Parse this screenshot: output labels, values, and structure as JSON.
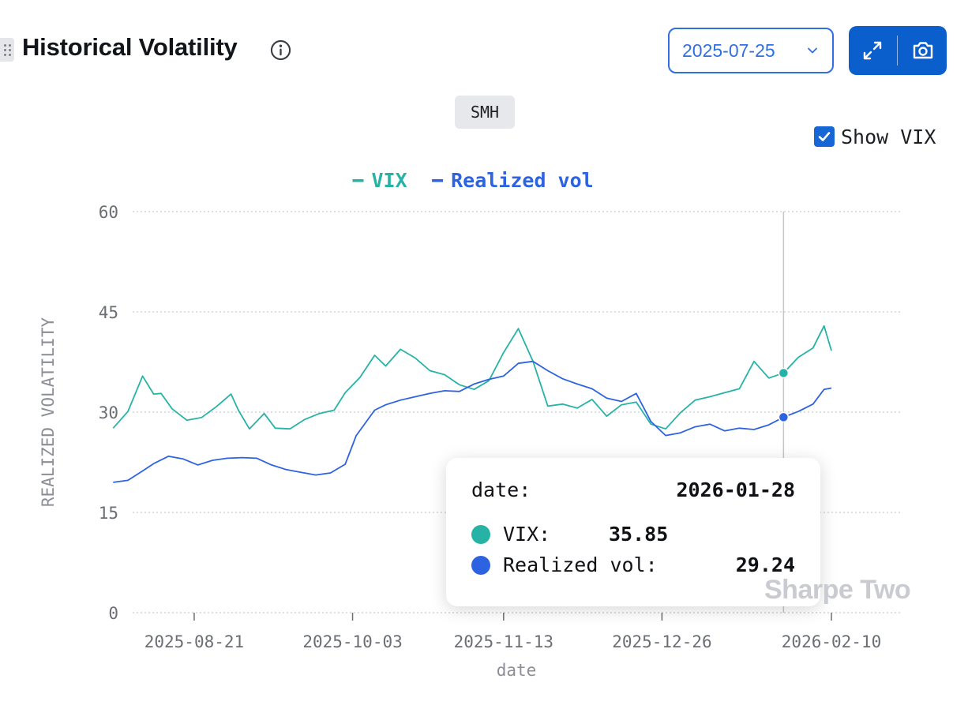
{
  "header": {
    "title": "Historical Volatility",
    "date_select_value": "2025-07-25",
    "expand_icon": "expand-icon",
    "camera_icon": "camera-icon",
    "info_icon": "info-icon"
  },
  "ticker": "SMH",
  "show_vix": {
    "label": "Show VIX",
    "checked": true
  },
  "tooltip": {
    "date_label": "date:",
    "date_value": "2026-01-28",
    "vix_label": "VIX:",
    "vix_value": "35.85",
    "rv_label": "Realized vol:",
    "rv_value": "29.24"
  },
  "watermark": "Sharpe Two",
  "colors": {
    "vix": "#26b3a6",
    "realized": "#2d63e0",
    "accent": "#0b5fcc"
  },
  "chart_data": {
    "type": "line",
    "xlabel": "date",
    "ylabel": "REALIZED VOLATILITY",
    "ylim": [
      0,
      60
    ],
    "yticks": [
      0,
      15,
      30,
      45,
      60
    ],
    "xlim": [
      "2025-07-25",
      "2026-02-14"
    ],
    "xticks": [
      "2025-08-21",
      "2025-10-03",
      "2025-11-13",
      "2025-12-26",
      "2026-02-10"
    ],
    "legend": "top-center",
    "grid": true,
    "hover_date": "2026-01-28",
    "series": [
      {
        "name": "VIX",
        "x": [
          "2025-07-30",
          "2025-08-03",
          "2025-08-07",
          "2025-08-10",
          "2025-08-12",
          "2025-08-15",
          "2025-08-19",
          "2025-08-23",
          "2025-08-27",
          "2025-08-31",
          "2025-09-02",
          "2025-09-05",
          "2025-09-09",
          "2025-09-12",
          "2025-09-16",
          "2025-09-20",
          "2025-09-24",
          "2025-09-28",
          "2025-10-01",
          "2025-10-05",
          "2025-10-09",
          "2025-10-12",
          "2025-10-16",
          "2025-10-20",
          "2025-10-24",
          "2025-10-28",
          "2025-11-01",
          "2025-11-05",
          "2025-11-09",
          "2025-11-13",
          "2025-11-17",
          "2025-11-21",
          "2025-11-25",
          "2025-11-29",
          "2025-12-03",
          "2025-12-07",
          "2025-12-11",
          "2025-12-15",
          "2025-12-19",
          "2025-12-23",
          "2025-12-27",
          "2025-12-31",
          "2026-01-04",
          "2026-01-08",
          "2026-01-12",
          "2026-01-16",
          "2026-01-20",
          "2026-01-24",
          "2026-01-28",
          "2026-02-01",
          "2026-02-05",
          "2026-02-08",
          "2026-02-10"
        ],
        "y": [
          27.6,
          30.1,
          35.4,
          32.7,
          32.8,
          30.5,
          28.8,
          29.2,
          30.8,
          32.7,
          30.3,
          27.5,
          29.8,
          27.6,
          27.5,
          28.9,
          29.8,
          30.3,
          32.9,
          35.2,
          38.5,
          36.9,
          39.4,
          38.1,
          36.2,
          35.6,
          34.1,
          33.4,
          34.7,
          38.9,
          42.5,
          37.6,
          30.9,
          31.2,
          30.6,
          31.9,
          29.4,
          31.1,
          31.5,
          28.2,
          27.5,
          29.9,
          31.8,
          32.3,
          32.9,
          33.5,
          37.6,
          35.1,
          35.85,
          38.2,
          39.6,
          42.9,
          39.2
        ]
      },
      {
        "name": "Realized vol",
        "x": [
          "2025-07-30",
          "2025-08-03",
          "2025-08-07",
          "2025-08-10",
          "2025-08-14",
          "2025-08-18",
          "2025-08-22",
          "2025-08-26",
          "2025-08-30",
          "2025-09-03",
          "2025-09-07",
          "2025-09-11",
          "2025-09-15",
          "2025-09-19",
          "2025-09-23",
          "2025-09-27",
          "2025-10-01",
          "2025-10-04",
          "2025-10-06",
          "2025-10-09",
          "2025-10-12",
          "2025-10-16",
          "2025-10-20",
          "2025-10-24",
          "2025-10-28",
          "2025-11-01",
          "2025-11-05",
          "2025-11-09",
          "2025-11-13",
          "2025-11-17",
          "2025-11-21",
          "2025-11-25",
          "2025-11-29",
          "2025-12-03",
          "2025-12-07",
          "2025-12-11",
          "2025-12-15",
          "2025-12-19",
          "2025-12-23",
          "2025-12-27",
          "2025-12-31",
          "2026-01-04",
          "2026-01-08",
          "2026-01-12",
          "2026-01-16",
          "2026-01-20",
          "2026-01-24",
          "2026-01-28",
          "2026-02-01",
          "2026-02-05",
          "2026-02-08",
          "2026-02-10"
        ],
        "y": [
          19.5,
          19.8,
          21.2,
          22.3,
          23.4,
          23.0,
          22.1,
          22.8,
          23.1,
          23.2,
          23.1,
          22.1,
          21.4,
          21.0,
          20.6,
          20.9,
          22.2,
          26.5,
          28.0,
          30.3,
          31.1,
          31.8,
          32.3,
          32.8,
          33.2,
          33.1,
          34.2,
          34.9,
          35.4,
          37.3,
          37.6,
          36.2,
          35.0,
          34.2,
          33.5,
          32.1,
          31.6,
          32.8,
          28.6,
          26.5,
          26.9,
          27.8,
          28.2,
          27.2,
          27.6,
          27.4,
          28.1,
          29.24,
          30.1,
          31.2,
          33.4,
          33.6
        ]
      }
    ]
  }
}
